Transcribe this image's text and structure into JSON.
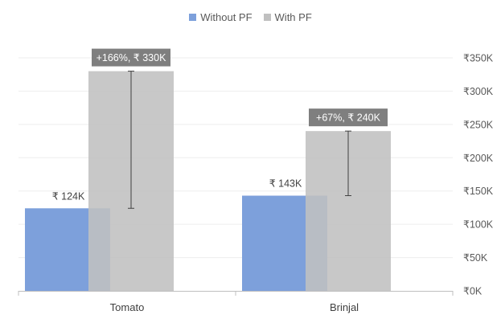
{
  "chart_data": {
    "type": "bar",
    "categories": [
      "Tomato",
      "Brinjal"
    ],
    "series": [
      {
        "name": "Without PF",
        "values": [
          124,
          143
        ],
        "color": "#7da0db",
        "labels": [
          "₹ 124K",
          "₹ 143K"
        ]
      },
      {
        "name": "With PF",
        "values": [
          330,
          240
        ],
        "color": "#c0c0c0",
        "labels": [
          "",
          ""
        ]
      }
    ],
    "annotations": [
      "+166%, ₹ 330K",
      "+67%, ₹ 240K"
    ],
    "annotation_color": "#7f7f7f",
    "y_axis": {
      "position": "right",
      "min": 0,
      "max": 350,
      "ticks": [
        0,
        50,
        100,
        150,
        200,
        250,
        300,
        350
      ],
      "tick_labels": [
        "₹0K",
        "₹50K",
        "₹100K",
        "₹150K",
        "₹200K",
        "₹250K",
        "₹300K",
        "₹350K"
      ]
    },
    "legend": {
      "position": "top-center",
      "entries": [
        "Without PF",
        "With PF"
      ]
    },
    "grid": true
  }
}
